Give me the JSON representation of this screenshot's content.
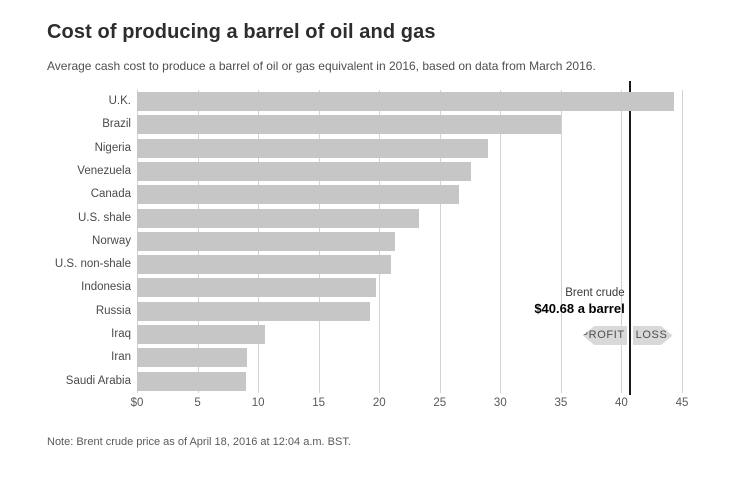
{
  "header": {
    "title": "Cost of producing a barrel of oil and gas",
    "subtitle": "Average cash cost to produce a barrel of oil or gas equivalent in 2016, based on data from March 2016."
  },
  "annotation": {
    "line1": "Brent crude",
    "line2": "$40.68 a barrel",
    "profit_label": "PROFIT",
    "loss_label": "LOSS"
  },
  "footnote": "Note: Brent crude price as of April 18, 2016 at 12:04 a.m. BST.",
  "colors": {
    "bar": "#c6c6c6",
    "gridline": "#d2d2d2",
    "reference_line": "#1a1a1a",
    "badge_bg": "#d9d9d9",
    "title_text": "#2d2d2d",
    "label_text": "#4a4a4a"
  },
  "chart_data": {
    "type": "bar",
    "orientation": "horizontal",
    "title": "Cost of producing a barrel of oil and gas",
    "subtitle": "Average cash cost to produce a barrel of oil or gas equivalent in 2016, based on data from March 2016.",
    "categories": [
      "U.K.",
      "Brazil",
      "Nigeria",
      "Venezuela",
      "Canada",
      "U.S. shale",
      "Norway",
      "U.S. non-shale",
      "Indonesia",
      "Russia",
      "Iraq",
      "Iran",
      "Saudi Arabia"
    ],
    "values": [
      44.3,
      35.0,
      29.0,
      27.6,
      26.6,
      23.3,
      21.3,
      21.0,
      19.7,
      19.2,
      10.6,
      9.1,
      9.0
    ],
    "xlim": [
      0,
      45
    ],
    "tick_values": [
      0,
      5,
      10,
      15,
      20,
      25,
      30,
      35,
      40,
      45
    ],
    "x_tick_labels": [
      "$0",
      "5",
      "10",
      "15",
      "20",
      "25",
      "30",
      "35",
      "40",
      "45"
    ],
    "grid": true,
    "legend": "none",
    "reference_line": {
      "value": 40.68,
      "label": "Brent crude $40.68 a barrel"
    }
  }
}
